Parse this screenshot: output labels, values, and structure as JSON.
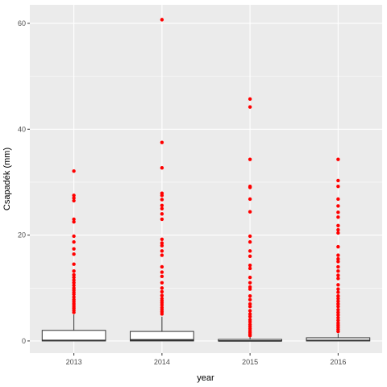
{
  "chart_data": {
    "type": "box",
    "xlabel": "year",
    "ylabel": "Csapadék (mm)",
    "categories": [
      "2013",
      "2014",
      "2015",
      "2016"
    ],
    "y_ticks": [
      0,
      20,
      40,
      60
    ],
    "ylim": [
      -2.3,
      63.5
    ],
    "grid": true,
    "colors": {
      "panel": "#ebebeb",
      "grid": "#ffffff",
      "box_fill": "#ffffff",
      "box_line": "#333333",
      "outlier": "#ff0000"
    },
    "boxes": [
      {
        "year": "2013",
        "q1": 0,
        "median": 0.1,
        "q3": 2.0,
        "whisker_low": 0,
        "whisker_high": 5.0,
        "outliers": [
          32.1,
          27.5,
          27.0,
          26.5,
          23.0,
          22.5,
          19.8,
          18.7,
          17.4,
          16.4,
          14.5,
          13.2,
          12.5,
          12.0,
          11.5,
          11.0,
          10.5,
          10.0,
          9.6,
          9.2,
          8.8,
          8.3,
          7.8,
          7.4,
          7.0,
          6.6,
          6.2,
          5.8,
          5.4
        ]
      },
      {
        "year": "2014",
        "q1": 0,
        "median": 0.2,
        "q3": 1.8,
        "whisker_low": 0,
        "whisker_high": 4.6,
        "outliers": [
          60.7,
          37.5,
          32.7,
          27.9,
          27.5,
          26.7,
          25.6,
          25.0,
          24.0,
          23.0,
          19.2,
          18.5,
          18.0,
          17.0,
          16.2,
          14.0,
          13.0,
          12.2,
          11.0,
          10.0,
          9.3,
          8.6,
          8.0,
          7.6,
          7.2,
          6.8,
          6.3,
          5.9,
          5.5,
          5.1
        ]
      },
      {
        "year": "2015",
        "q1": 0,
        "median": 0,
        "q3": 0.3,
        "whisker_low": 0,
        "whisker_high": 0.7,
        "outliers": [
          45.7,
          44.2,
          34.3,
          29.2,
          29.0,
          26.8,
          24.4,
          19.8,
          18.7,
          17.0,
          16.0,
          14.3,
          13.7,
          12.0,
          11.0,
          10.2,
          9.8,
          8.5,
          7.8,
          7.0,
          6.5,
          5.7,
          5.1,
          4.6,
          4.0,
          3.6,
          3.1,
          2.7,
          2.3,
          1.9,
          1.6,
          1.3,
          1.0
        ]
      },
      {
        "year": "2016",
        "q1": 0,
        "median": 0.1,
        "q3": 0.6,
        "whisker_low": 0,
        "whisker_high": 1.4,
        "outliers": [
          34.3,
          30.3,
          29.2,
          26.8,
          25.5,
          24.3,
          23.4,
          21.8,
          21.0,
          20.4,
          17.8,
          16.2,
          15.5,
          15.0,
          14.0,
          13.2,
          12.4,
          11.8,
          10.6,
          9.8,
          9.2,
          8.5,
          8.0,
          7.5,
          7.0,
          6.5,
          5.9,
          5.4,
          4.9,
          4.4,
          3.9,
          3.4,
          3.0,
          2.6,
          2.2,
          1.8
        ]
      }
    ]
  }
}
